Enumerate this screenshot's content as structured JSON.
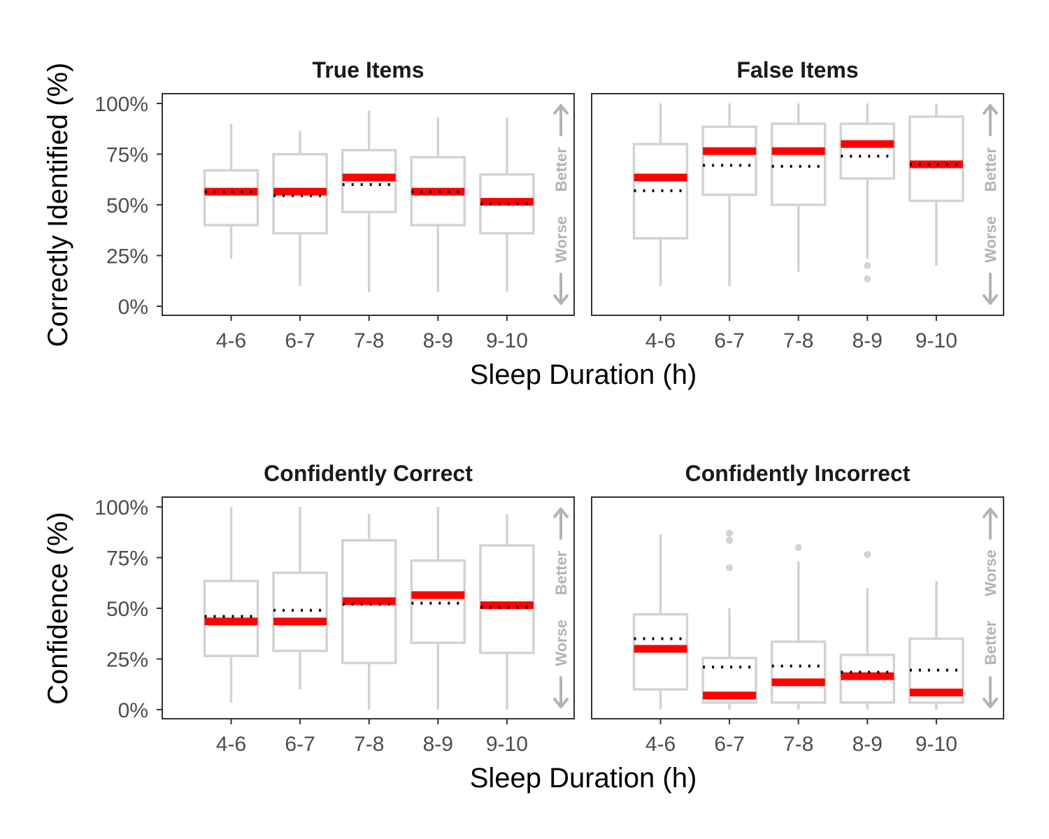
{
  "figure": {
    "ylabel_top": "Correctly Identified (%)",
    "ylabel_bottom": "Confidence (%)",
    "xlabel_top": "Sleep Duration (h)",
    "xlabel_bottom": "Sleep Duration (h)"
  },
  "colors": {
    "median": "#ff0000",
    "mean": "#000000",
    "box": "#d3d3d3",
    "direction_text": "#b3b3b3"
  },
  "chart_data": [
    {
      "type": "box",
      "title": "True Items",
      "categories": [
        "4-6",
        "6-7",
        "7-8",
        "8-9",
        "9-10"
      ],
      "ylim": [
        0,
        100
      ],
      "yticks": [
        "0%",
        "25%",
        "50%",
        "75%",
        "100%"
      ],
      "direction": {
        "top": "Better",
        "bottom": "Worse"
      },
      "boxes": [
        {
          "q1": 40,
          "median": 56.5,
          "q3": 67,
          "min": 23.5,
          "max": 90,
          "mean": 56.5,
          "outliers": []
        },
        {
          "q1": 36,
          "median": 56.5,
          "q3": 75,
          "min": 10,
          "max": 86.5,
          "mean": 54.5,
          "outliers": []
        },
        {
          "q1": 46.5,
          "median": 63.5,
          "q3": 77,
          "min": 7,
          "max": 96.5,
          "mean": 60,
          "outliers": []
        },
        {
          "q1": 40,
          "median": 56.5,
          "q3": 73.5,
          "min": 7,
          "max": 93,
          "mean": 56.5,
          "outliers": []
        },
        {
          "q1": 36,
          "median": 51.5,
          "q3": 65,
          "min": 7,
          "max": 93,
          "mean": 50.5,
          "outliers": []
        }
      ]
    },
    {
      "type": "box",
      "title": "False Items",
      "categories": [
        "4-6",
        "6-7",
        "7-8",
        "8-9",
        "9-10"
      ],
      "ylim": [
        0,
        100
      ],
      "yticks": [
        "0%",
        "25%",
        "50%",
        "75%",
        "100%"
      ],
      "direction": {
        "top": "Better",
        "bottom": "Worse"
      },
      "boxes": [
        {
          "q1": 33.5,
          "median": 63.5,
          "q3": 80,
          "min": 10,
          "max": 100,
          "mean": 57,
          "outliers": []
        },
        {
          "q1": 55,
          "median": 76.5,
          "q3": 88.5,
          "min": 10,
          "max": 100,
          "mean": 69.5,
          "outliers": []
        },
        {
          "q1": 50,
          "median": 76.5,
          "q3": 90,
          "min": 17,
          "max": 100,
          "mean": 69,
          "outliers": []
        },
        {
          "q1": 63,
          "median": 80,
          "q3": 90,
          "min": 23.5,
          "max": 100,
          "mean": 74,
          "outliers": [
            20,
            13.5
          ]
        },
        {
          "q1": 52,
          "median": 70,
          "q3": 93.5,
          "min": 20,
          "max": 100,
          "mean": 70,
          "outliers": []
        }
      ]
    },
    {
      "type": "box",
      "title": "Confidently Correct",
      "categories": [
        "4-6",
        "6-7",
        "7-8",
        "8-9",
        "9-10"
      ],
      "ylim": [
        0,
        100
      ],
      "yticks": [
        "0%",
        "25%",
        "50%",
        "75%",
        "100%"
      ],
      "direction": {
        "top": "Better",
        "bottom": "Worse"
      },
      "boxes": [
        {
          "q1": 26.5,
          "median": 43.5,
          "q3": 63.5,
          "min": 3.5,
          "max": 100,
          "mean": 46,
          "outliers": []
        },
        {
          "q1": 29,
          "median": 43.5,
          "q3": 67.5,
          "min": 10,
          "max": 100,
          "mean": 49,
          "outliers": []
        },
        {
          "q1": 23,
          "median": 53.5,
          "q3": 83.5,
          "min": 0,
          "max": 96.5,
          "mean": 52,
          "outliers": []
        },
        {
          "q1": 33,
          "median": 56.5,
          "q3": 73.5,
          "min": 0,
          "max": 100,
          "mean": 52.5,
          "outliers": []
        },
        {
          "q1": 28,
          "median": 51.5,
          "q3": 81,
          "min": 0,
          "max": 96.5,
          "mean": 50.5,
          "outliers": []
        }
      ]
    },
    {
      "type": "box",
      "title": "Confidently Incorrect",
      "categories": [
        "4-6",
        "6-7",
        "7-8",
        "8-9",
        "9-10"
      ],
      "ylim": [
        0,
        100
      ],
      "yticks": [
        "0%",
        "25%",
        "50%",
        "75%",
        "100%"
      ],
      "direction": {
        "top": "Worse",
        "bottom": "Better"
      },
      "boxes": [
        {
          "q1": 10,
          "median": 30,
          "q3": 47,
          "min": 0,
          "max": 86.5,
          "mean": 35,
          "outliers": []
        },
        {
          "q1": 3.5,
          "median": 7,
          "q3": 25.5,
          "min": 0,
          "max": 50,
          "mean": 21,
          "outliers": [
            87,
            83.5,
            70
          ]
        },
        {
          "q1": 3.5,
          "median": 13.5,
          "q3": 33.5,
          "min": 0,
          "max": 73,
          "mean": 21.5,
          "outliers": [
            80
          ]
        },
        {
          "q1": 3.5,
          "median": 16.5,
          "q3": 27,
          "min": 0,
          "max": 60,
          "mean": 18.5,
          "outliers": [
            76.5
          ]
        },
        {
          "q1": 3.5,
          "median": 8.5,
          "q3": 35,
          "min": 0,
          "max": 63.5,
          "mean": 19.5,
          "outliers": []
        }
      ]
    }
  ]
}
